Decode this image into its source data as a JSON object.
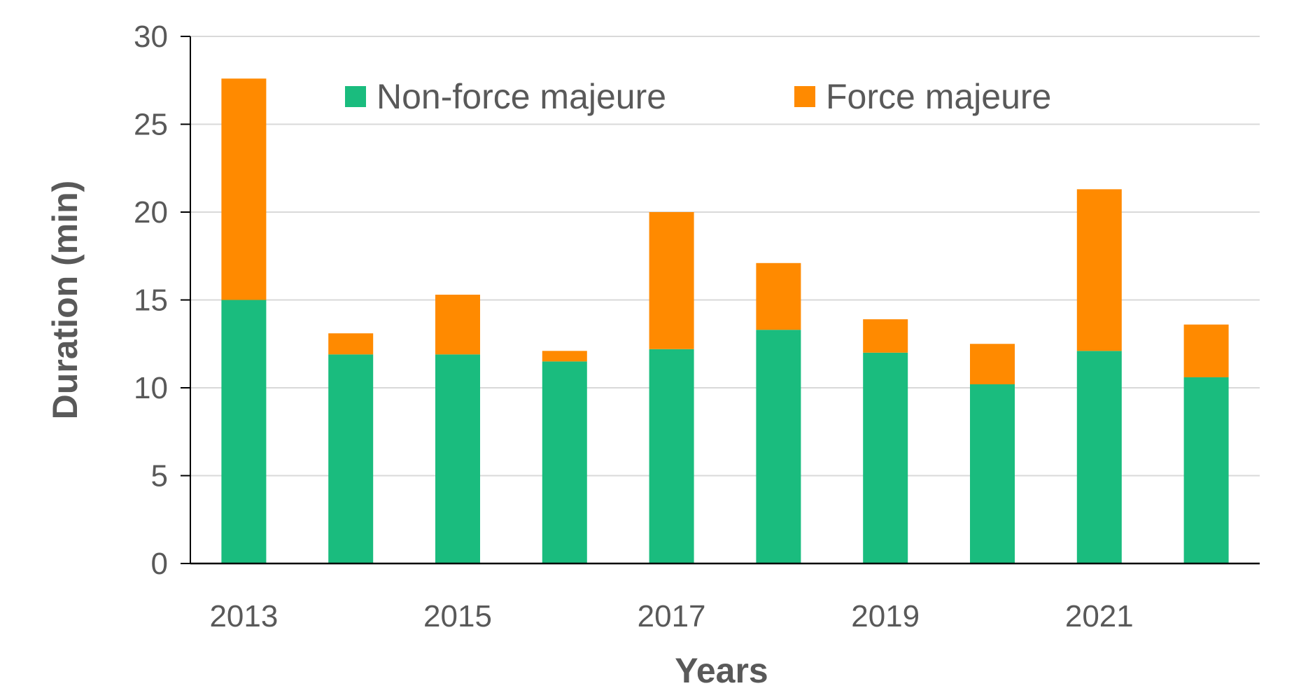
{
  "chart_data": {
    "type": "bar",
    "stacked": true,
    "title": "",
    "xlabel": "Years",
    "ylabel": "Duration (min)",
    "ylim": [
      0,
      30
    ],
    "yticks": [
      0,
      5,
      10,
      15,
      20,
      25,
      30
    ],
    "grid": true,
    "legend_position": "top",
    "categories": [
      "2013",
      "2014",
      "2015",
      "2016",
      "2017",
      "2018",
      "2019",
      "2020",
      "2021",
      "2022"
    ],
    "x_tick_labels": [
      "2013",
      "",
      "2015",
      "",
      "2017",
      "",
      "2019",
      "",
      "2021",
      ""
    ],
    "series": [
      {
        "name": "Non-force majeure",
        "color": "#1abc7e",
        "values": [
          15.0,
          11.9,
          11.9,
          11.5,
          12.2,
          13.3,
          12.0,
          10.2,
          12.1,
          10.6
        ]
      },
      {
        "name": "Force majeure",
        "color": "#ff8a00",
        "values": [
          12.6,
          1.2,
          3.4,
          0.6,
          7.8,
          3.8,
          1.9,
          2.3,
          9.2,
          3.0
        ]
      }
    ]
  }
}
